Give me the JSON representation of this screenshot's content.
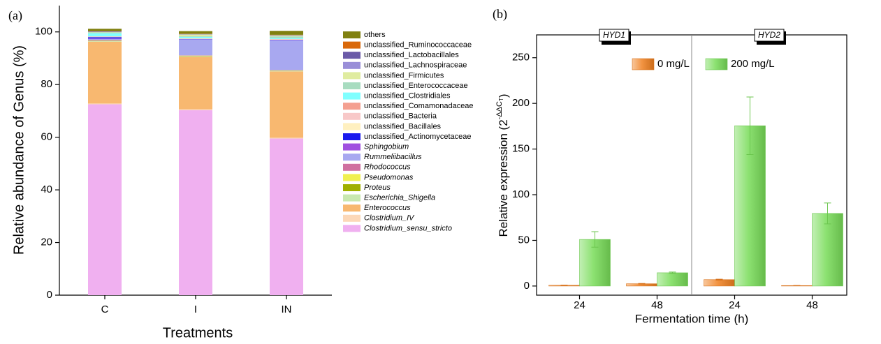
{
  "chart_data": [
    {
      "type": "stacked_bar",
      "panel_label": "(a)",
      "xlabel": "Treatments",
      "ylabel": "Relative abundance of Genus (%)",
      "categories": [
        "C",
        "I",
        "IN"
      ],
      "ylim": [
        0,
        110
      ],
      "yticks": [
        0,
        20,
        40,
        60,
        80,
        100
      ],
      "series": [
        {
          "name": "Clostridium_sensu_stricto",
          "italic": true,
          "color": "#f0b0f0",
          "values": [
            72.5,
            70.3,
            59.5
          ]
        },
        {
          "name": "Clostridium_IV",
          "italic": true,
          "color": "#fcd8b8",
          "values": [
            0.3,
            0.3,
            0.3
          ]
        },
        {
          "name": "Enterococcus",
          "italic": true,
          "color": "#f8b870",
          "values": [
            23.5,
            20.0,
            25.2
          ]
        },
        {
          "name": "Escherichia_Shigella",
          "italic": true,
          "color": "#c8e8b0",
          "values": [
            0.2,
            0.2,
            0.2
          ]
        },
        {
          "name": "Proteus",
          "italic": true,
          "color": "#a0b000",
          "values": [
            0.1,
            0.1,
            0.1
          ]
        },
        {
          "name": "Pseudomonas",
          "italic": true,
          "color": "#f0f050",
          "values": [
            0.1,
            0.1,
            0.1
          ]
        },
        {
          "name": "Rhodococcus",
          "italic": true,
          "color": "#d070a0",
          "values": [
            0.2,
            0.1,
            0.1
          ]
        },
        {
          "name": "Rummeliibacillus",
          "italic": true,
          "color": "#a8a8f0",
          "values": [
            0.4,
            6.0,
            11.3
          ]
        },
        {
          "name": "Sphingobium",
          "italic": true,
          "color": "#a050e0",
          "values": [
            0.2,
            0.1,
            0.1
          ]
        },
        {
          "name": "unclassified_Actinomycetaceae",
          "color": "#1a1aee",
          "values": [
            0.5,
            0.1,
            0.1
          ]
        },
        {
          "name": "unclassified_Bacillales",
          "color": "#fff0c0",
          "values": [
            0.1,
            0.1,
            0.1
          ]
        },
        {
          "name": "unclassified_Bacteria",
          "color": "#f8c8c8",
          "values": [
            0.1,
            0.1,
            0.1
          ]
        },
        {
          "name": "unclassified_Comamonadaceae",
          "color": "#f4a090",
          "values": [
            0.1,
            0.1,
            0.1
          ]
        },
        {
          "name": "unclassified_Clostridiales",
          "color": "#80ffff",
          "values": [
            1.2,
            0.5,
            0.4
          ]
        },
        {
          "name": "unclassified_Enterococcaceae",
          "color": "#a8dcc0",
          "values": [
            0.3,
            0.3,
            0.6
          ]
        },
        {
          "name": "unclassified_Firmicutes",
          "color": "#e0eca0",
          "values": [
            0.1,
            0.6,
            0.3
          ]
        },
        {
          "name": "unclassified_Lachnospiraceae",
          "color": "#9a8fd8",
          "values": [
            0.2,
            0.1,
            0.1
          ]
        },
        {
          "name": "unclassified_Lactobacillales",
          "color": "#6a5aa8",
          "values": [
            0.1,
            0.1,
            0.1
          ]
        },
        {
          "name": "unclassified_Ruminococcaceae",
          "color": "#d9680a",
          "values": [
            0.1,
            0.1,
            0.1
          ]
        },
        {
          "name": "others",
          "color": "#808010",
          "values": [
            0.9,
            1.0,
            1.5
          ]
        }
      ]
    },
    {
      "type": "grouped_bar",
      "panel_label": "(b)",
      "xlabel": "Fermentation time (h)",
      "ylabel": {
        "base": "Relative expression (2",
        "exponent": "-ΔΔC",
        "subscript": "T",
        "close": ")"
      },
      "groups": [
        "HYD1",
        "HYD2"
      ],
      "categories": [
        "24",
        "48",
        "24",
        "48"
      ],
      "ylim": [
        -10,
        275
      ],
      "yticks": [
        0,
        50,
        100,
        150,
        200,
        250
      ],
      "series": [
        {
          "name": "0 mg/L",
          "color": "#f08020",
          "values": [
            0.8,
            2.5,
            7,
            0.5
          ],
          "errors": [
            0.2,
            0.3,
            0.5,
            0.1
          ]
        },
        {
          "name": "200 mg/L",
          "color": "#78dc58",
          "values": [
            51,
            14.5,
            175.5,
            79.5
          ],
          "errors": [
            8.5,
            0.8,
            31.5,
            11.5
          ]
        }
      ]
    }
  ]
}
